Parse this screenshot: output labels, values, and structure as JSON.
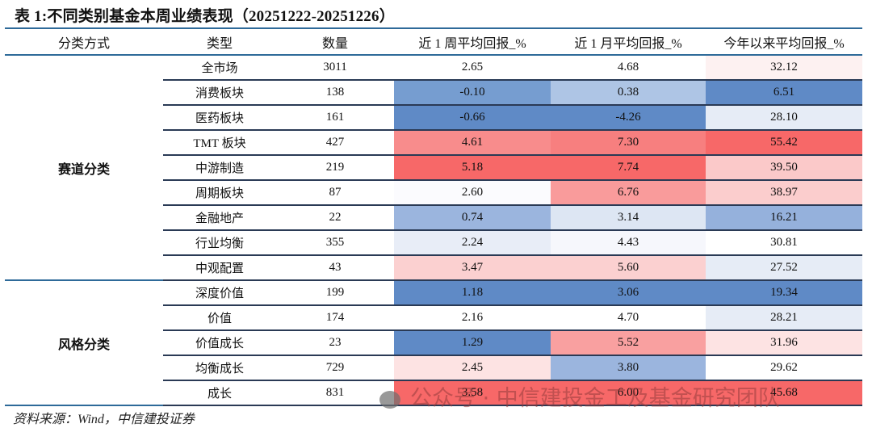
{
  "title": "表 1:不同类别基金本周业绩表现（20251222-20251226）",
  "headers": [
    "分类方式",
    "类型",
    "数量",
    "近 1 周平均回报_%",
    "近 1 月平均回报_%",
    "今年以来平均回报_%"
  ],
  "groups": [
    {
      "label": "赛道分类",
      "rows": [
        {
          "type": "全市场",
          "count": "3011",
          "w": "2.65",
          "m": "4.68",
          "y": "32.12",
          "cw": "#ffffff",
          "cm": "#ffffff",
          "cy": "#fdf1f1"
        },
        {
          "type": "消费板块",
          "count": "138",
          "w": "-0.10",
          "m": "0.38",
          "y": "6.51",
          "cw": "#769dd0",
          "cm": "#aec5e5",
          "cy": "#5f8ac6"
        },
        {
          "type": "医药板块",
          "count": "161",
          "w": "-0.66",
          "m": "-4.26",
          "y": "28.10",
          "cw": "#5f8ac6",
          "cm": "#5f8ac6",
          "cy": "#e6ecf6"
        },
        {
          "type": "TMT 板块",
          "count": "427",
          "w": "4.61",
          "m": "7.30",
          "y": "55.42",
          "cw": "#f88c8c",
          "cm": "#f77f7f",
          "cy": "#f76868"
        },
        {
          "type": "中游制造",
          "count": "219",
          "w": "5.18",
          "m": "7.74",
          "y": "39.50",
          "cw": "#f76868",
          "cm": "#f76868",
          "cy": "#fbc9c9"
        },
        {
          "type": "周期板块",
          "count": "87",
          "w": "2.60",
          "m": "6.76",
          "y": "38.97",
          "cw": "#fbfbfe",
          "cm": "#f99b9b",
          "cy": "#fbcdcd"
        },
        {
          "type": "金融地产",
          "count": "22",
          "w": "0.74",
          "m": "3.14",
          "y": "16.21",
          "cw": "#9bb5de",
          "cm": "#dde6f3",
          "cy": "#95b1dc"
        },
        {
          "type": "行业均衡",
          "count": "355",
          "w": "2.24",
          "m": "4.43",
          "y": "30.81",
          "cw": "#e8edf7",
          "cm": "#f6f7fc",
          "cy": "#ffffff"
        },
        {
          "type": "中观配置",
          "count": "43",
          "w": "3.47",
          "m": "5.60",
          "y": "27.52",
          "cw": "#fbd0d0",
          "cm": "#fbd0d0",
          "cy": "#e6ecf6"
        }
      ]
    },
    {
      "label": "风格分类",
      "rows": [
        {
          "type": "深度价值",
          "count": "199",
          "w": "1.18",
          "m": "3.06",
          "y": "19.34",
          "cw": "#5f8ac6",
          "cm": "#5f8ac6",
          "cy": "#5f8ac6"
        },
        {
          "type": "价值",
          "count": "174",
          "w": "2.16",
          "m": "4.70",
          "y": "28.21",
          "cw": "#ffffff",
          "cm": "#ffffff",
          "cy": "#e6ecf6"
        },
        {
          "type": "价值成长",
          "count": "23",
          "w": "1.29",
          "m": "5.52",
          "y": "31.96",
          "cw": "#5f8ac6",
          "cm": "#f9a0a0",
          "cy": "#fde3e3"
        },
        {
          "type": "均衡成长",
          "count": "729",
          "w": "2.45",
          "m": "3.80",
          "y": "29.62",
          "cw": "#fde3e3",
          "cm": "#9bb5de",
          "cy": "#ffffff"
        },
        {
          "type": "成长",
          "count": "831",
          "w": "3.58",
          "m": "6.00",
          "y": "45.68",
          "cw": "#f76868",
          "cm": "#f76868",
          "cy": "#f76868"
        }
      ]
    }
  ],
  "source": "资料来源：Wind，中信建投证券",
  "watermark": "公众号 · 中信建投金工及基金研究团队"
}
